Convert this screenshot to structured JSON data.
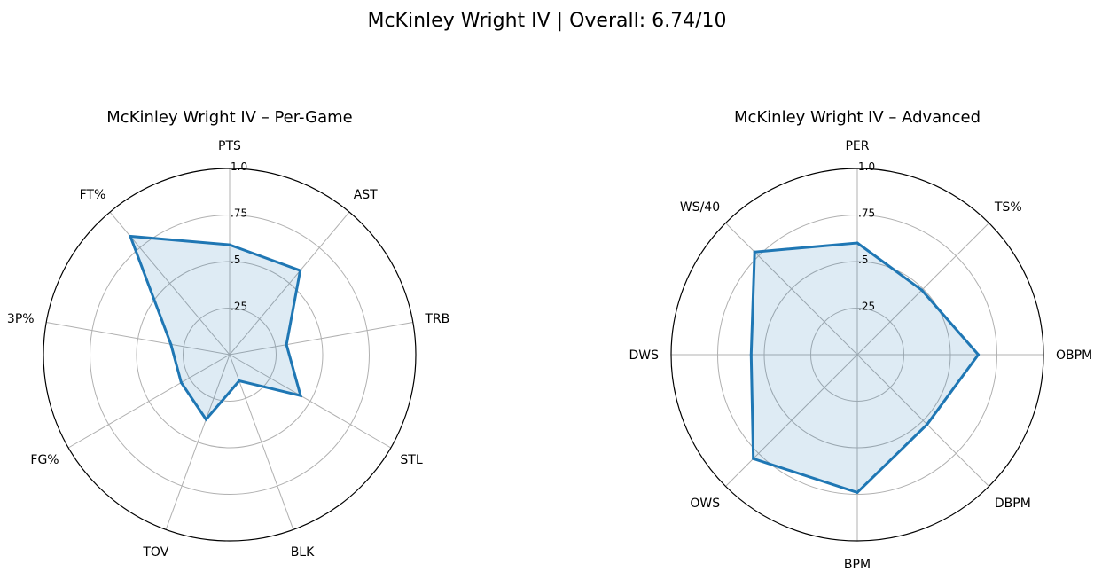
{
  "figure": {
    "suptitle": "McKinley Wright IV | Overall: 6.74/10"
  },
  "chart_data": [
    {
      "type": "radar",
      "title": "McKinley Wright IV – Per-Game",
      "categories": [
        "PTS",
        "AST",
        "TRB",
        "STL",
        "BLK",
        "TOV",
        "FG%",
        "3P%",
        "FT%"
      ],
      "values": [
        0.59,
        0.59,
        0.31,
        0.44,
        0.15,
        0.37,
        0.3,
        0.32,
        0.83
      ],
      "rlim": [
        0,
        1.0
      ],
      "rticks": [
        0.25,
        0.5,
        0.75,
        1.0
      ],
      "rtick_labels": [
        ".25",
        ".5",
        ".75",
        "1.0"
      ],
      "series_color": "#1f77b4",
      "grid": true
    },
    {
      "type": "radar",
      "title": "McKinley Wright IV – Advanced",
      "categories": [
        "PER",
        "TS%",
        "OBPM",
        "DBPM",
        "BPM",
        "OWS",
        "DWS",
        "WS/40"
      ],
      "values": [
        0.6,
        0.49,
        0.65,
        0.53,
        0.74,
        0.79,
        0.57,
        0.78
      ],
      "rlim": [
        0,
        1.0
      ],
      "rticks": [
        0.25,
        0.5,
        0.75,
        1.0
      ],
      "rtick_labels": [
        ".25",
        ".5",
        ".75",
        "1.0"
      ],
      "series_color": "#1f77b4",
      "grid": true
    }
  ]
}
